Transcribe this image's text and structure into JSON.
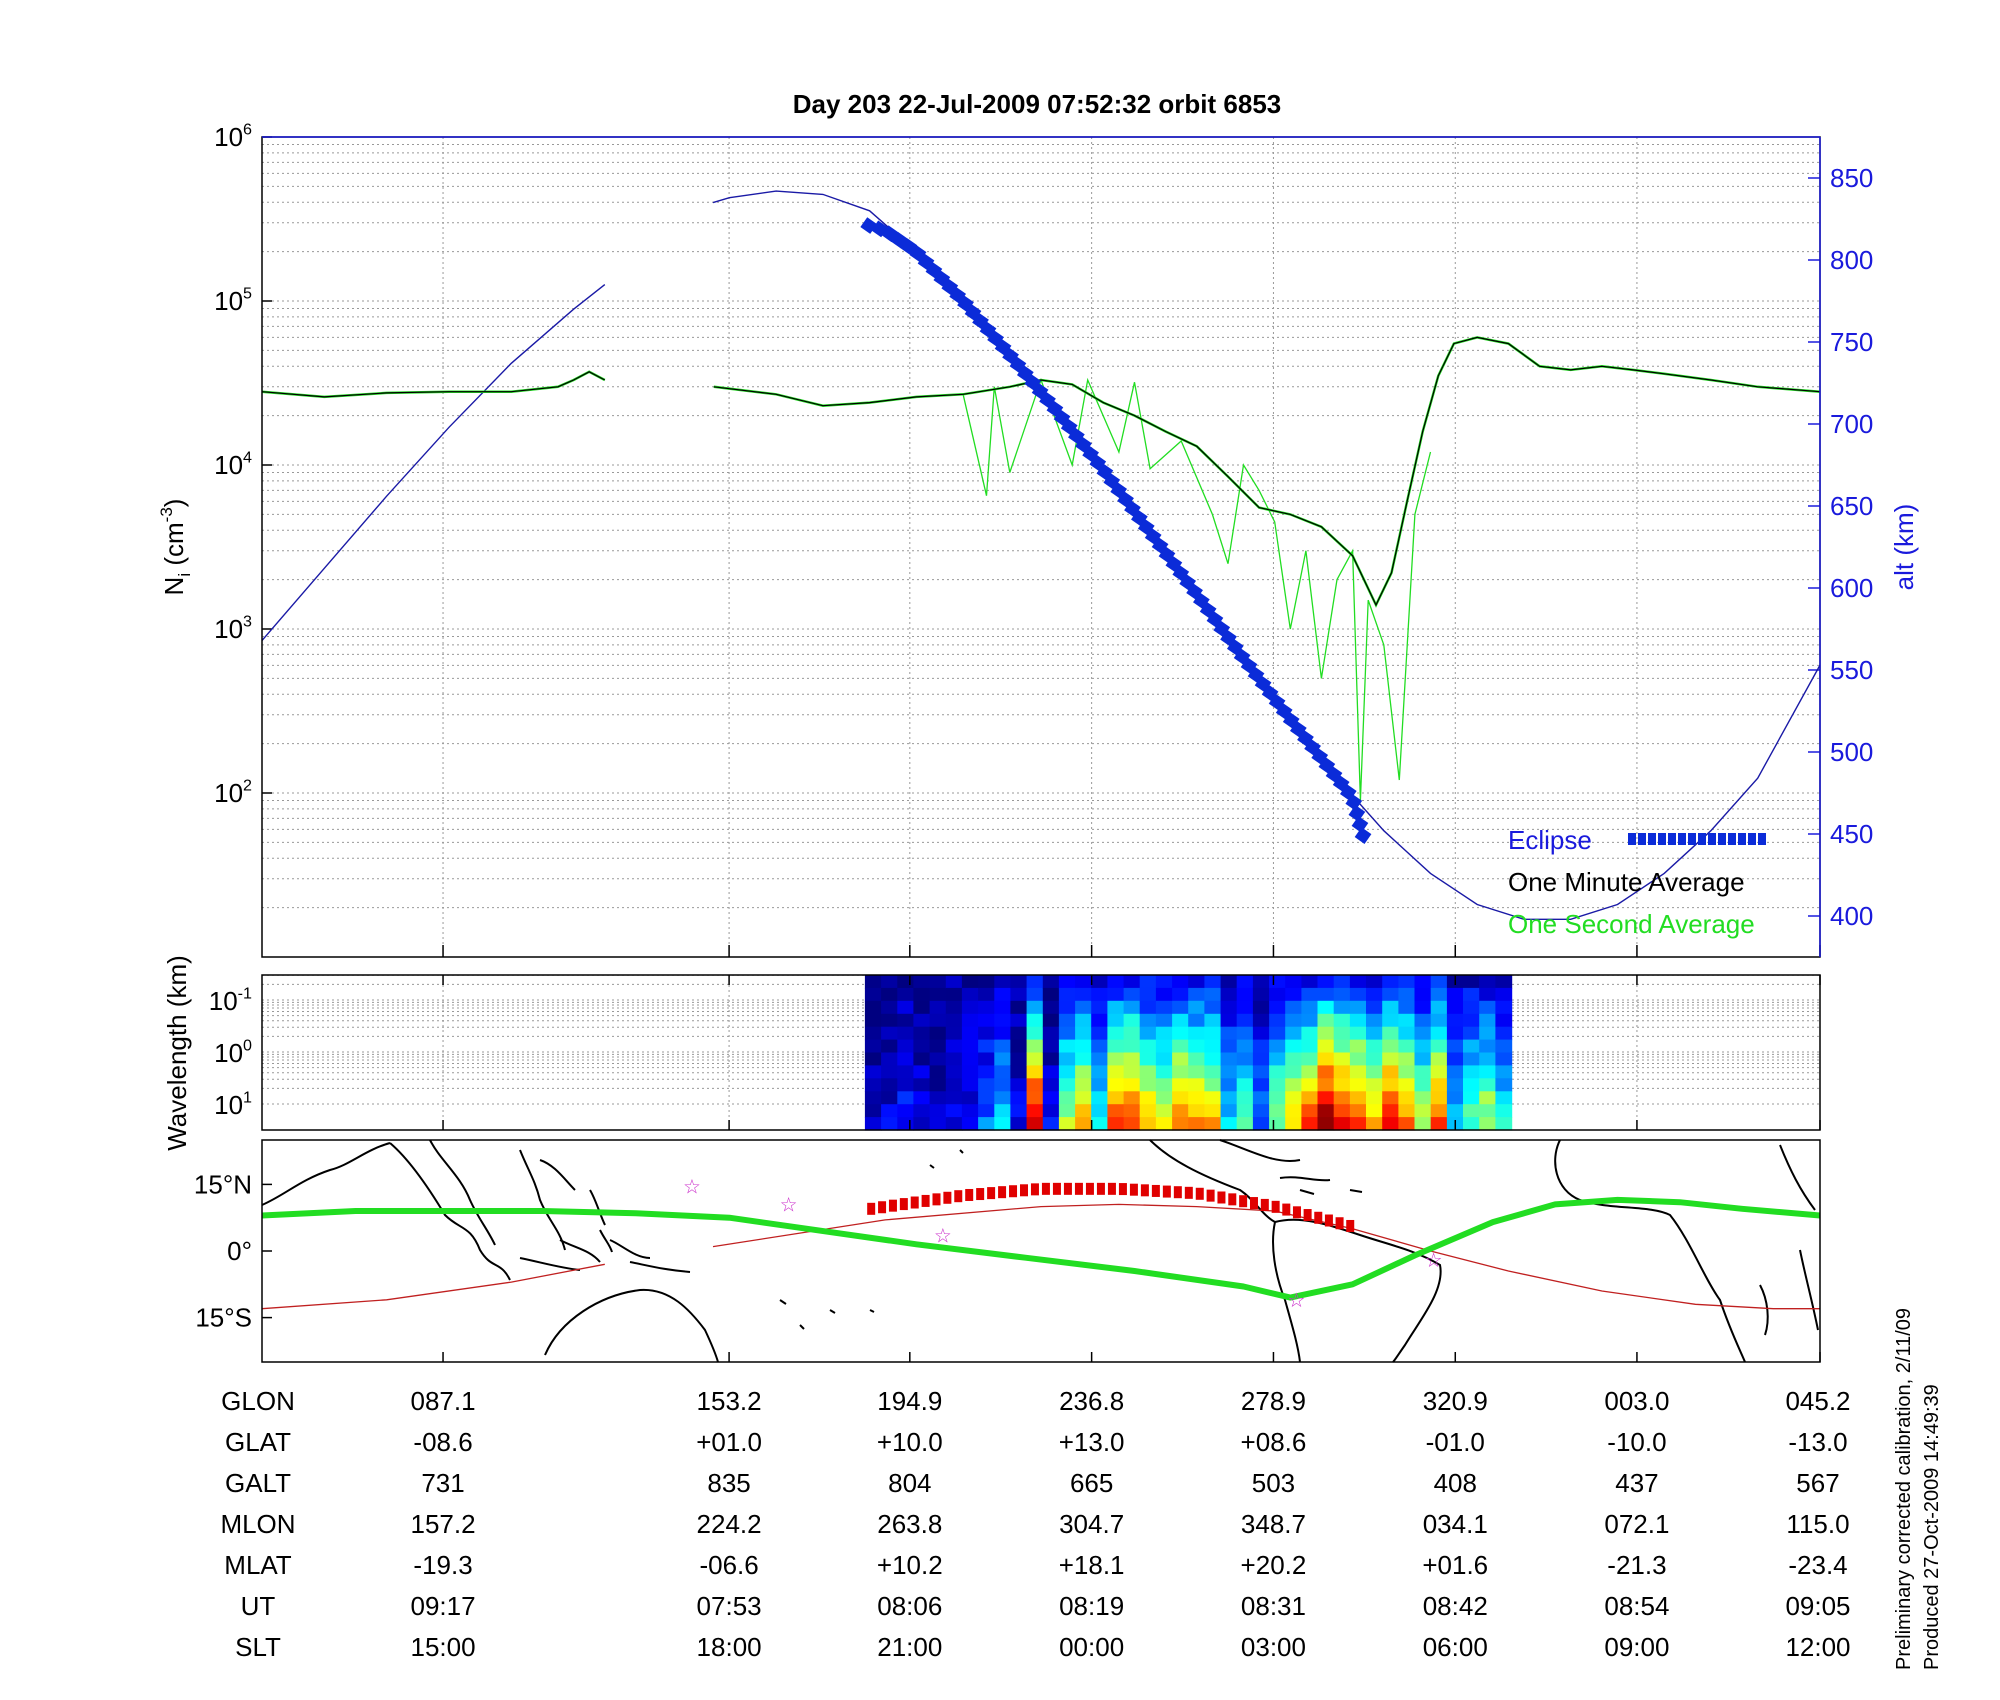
{
  "title": "Day 203  22-Jul-2009 07:52:32   orbit 6853",
  "colors": {
    "one_second": "#22dd22",
    "one_minute": "#000000",
    "altitude": "#1a1aa6",
    "eclipse": "#0b2bd8",
    "eclipse_map": "#e00000",
    "track": "#22dd22",
    "magnetic_equator": "#c02020",
    "stars": "#cc33cc",
    "right_axis": "#1a1adc"
  },
  "chart_data": [
    {
      "type": "line",
      "panel": "density",
      "ylabel": "N_i (cm^-3)",
      "yscale": "log",
      "ylim": [
        10,
        1000000
      ],
      "y_ticks": [
        "10^2",
        "10^3",
        "10^4",
        "10^5",
        "10^6"
      ],
      "y2label": "alt (km)",
      "y2lim": [
        375,
        875
      ],
      "y2_ticks": [
        "400",
        "450",
        "500",
        "550",
        "600",
        "650",
        "700",
        "750",
        "800",
        "850"
      ],
      "grid": true,
      "legend": {
        "position": "bottom-right",
        "entries": [
          "Eclipse",
          "One Minute Average",
          "One Second Average"
        ]
      },
      "x_tick_fraction": [
        0.1162,
        0.2998,
        0.4158,
        0.5325,
        0.6492,
        0.7659,
        0.8825,
        1.0
      ],
      "series": [
        {
          "name": "One Minute Average",
          "x": [
            0.0,
            0.04,
            0.08,
            0.12,
            0.16,
            0.19,
            0.2,
            0.21,
            0.22,
            0.29,
            0.33,
            0.36,
            0.39,
            0.42,
            0.45,
            0.48,
            0.5,
            0.52,
            0.54,
            0.56,
            0.58,
            0.6,
            0.62,
            0.64,
            0.66,
            0.68,
            0.7,
            0.715,
            0.725,
            0.735,
            0.745,
            0.755,
            0.765,
            0.78,
            0.8,
            0.82,
            0.84,
            0.86,
            0.88,
            0.9,
            0.93,
            0.96,
            1.0
          ],
          "y": [
            28000,
            26000,
            27500,
            28000,
            28000,
            30000,
            33000,
            37000,
            33000,
            30000,
            27000,
            23000,
            24000,
            26000,
            27000,
            30000,
            33000,
            31000,
            24000,
            20000,
            16000,
            13000,
            8500,
            5500,
            5000,
            4200,
            2800,
            1400,
            2200,
            6000,
            16000,
            35000,
            55000,
            60000,
            55000,
            40000,
            38000,
            40000,
            38000,
            36000,
            33000,
            30000,
            28000
          ]
        },
        {
          "name": "One Second Average",
          "x": [
            0.45,
            0.465,
            0.47,
            0.48,
            0.5,
            0.52,
            0.53,
            0.55,
            0.56,
            0.57,
            0.59,
            0.61,
            0.62,
            0.63,
            0.64,
            0.65,
            0.66,
            0.67,
            0.68,
            0.69,
            0.7,
            0.705,
            0.71,
            0.72,
            0.73,
            0.74,
            0.75
          ],
          "y": [
            27000,
            6500,
            30000,
            9000,
            33000,
            10000,
            33000,
            12000,
            32000,
            9500,
            14000,
            5000,
            2500,
            10000,
            7000,
            4500,
            1000,
            3000,
            500,
            2000,
            3000,
            90,
            1500,
            800,
            120,
            5000,
            12000
          ]
        },
        {
          "name": "alt (km)",
          "axis": "right",
          "x": [
            0.0,
            0.04,
            0.08,
            0.12,
            0.16,
            0.2,
            0.22,
            0.2895,
            0.3,
            0.33,
            0.36,
            0.39,
            0.42,
            0.45,
            0.48,
            0.51,
            0.54,
            0.57,
            0.6,
            0.63,
            0.66,
            0.69,
            0.72,
            0.75,
            0.78,
            0.81,
            0.84,
            0.87,
            0.9,
            0.93,
            0.96,
            1.0
          ],
          "y": [
            568,
            612,
            656,
            698,
            737,
            770,
            785,
            835,
            838,
            842,
            840,
            830,
            805,
            775,
            742,
            708,
            672,
            634,
            596,
            557,
            520,
            484,
            452,
            426,
            407,
            398,
            398,
            407,
            426,
            452,
            484,
            553
          ],
          "gap_x": [
            0.22,
            0.2895
          ]
        },
        {
          "name": "Eclipse",
          "axis": "right",
          "x": [
            0.3894,
            0.4,
            0.42,
            0.45,
            0.48,
            0.51,
            0.54,
            0.57,
            0.6,
            0.63,
            0.66,
            0.69,
            0.7,
            0.7067
          ],
          "y": [
            821,
            818,
            805,
            775,
            742,
            708,
            672,
            634,
            596,
            557,
            520,
            484,
            472,
            449
          ]
        }
      ]
    },
    {
      "type": "heatmap",
      "panel": "spectrogram",
      "ylabel": "Wavelength (km)",
      "yscale": "log",
      "y_ticks": [
        "10^-1",
        "10^0",
        "10^1"
      ],
      "x_range": [
        0.387,
        0.802
      ],
      "band_values": [
        0.05,
        0.08,
        0.12,
        0.08,
        0.07,
        0.1,
        0.12,
        0.2,
        0.3,
        0.1,
        0.85,
        0.1,
        0.5,
        0.6,
        0.3,
        0.7,
        0.75,
        0.6,
        0.55,
        0.7,
        0.65,
        0.6,
        0.3,
        0.4,
        0.2,
        0.45,
        0.6,
        0.7,
        0.9,
        0.8,
        0.75,
        0.6,
        0.8,
        0.7,
        0.5,
        0.7,
        0.3,
        0.4,
        0.5,
        0.35
      ]
    },
    {
      "type": "line",
      "panel": "map",
      "y_ticks": [
        "15°N",
        "0°",
        "15°S"
      ],
      "ylim": [
        -25,
        25
      ],
      "series": [
        {
          "name": "track",
          "x": [
            0.0,
            0.06,
            0.12,
            0.18,
            0.24,
            0.3,
            0.35,
            0.42,
            0.49,
            0.56,
            0.63,
            0.66,
            0.7,
            0.74,
            0.79,
            0.83,
            0.87,
            0.91,
            0.95,
            1.0
          ],
          "y": [
            8,
            9,
            9,
            9,
            8.5,
            7.5,
            5,
            1.5,
            -1.5,
            -4.5,
            -8,
            -10.5,
            -7.5,
            -1,
            6.5,
            10.5,
            11.5,
            11,
            9.5,
            8
          ]
        },
        {
          "name": "magnetic equator",
          "x": [
            0.0,
            0.08,
            0.16,
            0.22,
            0.2895,
            0.4,
            0.5,
            0.55,
            0.6,
            0.65,
            0.7,
            0.75,
            0.8,
            0.86,
            0.92,
            0.97,
            1.0
          ],
          "y": [
            -13,
            -11,
            -7,
            -3,
            1,
            7,
            10,
            10.5,
            10,
            9,
            5,
            0,
            -4.5,
            -9,
            -12,
            -13,
            -13
          ],
          "gap_x": [
            0.22,
            0.2895
          ]
        },
        {
          "name": "eclipse track",
          "x": [
            0.391,
            0.45,
            0.5,
            0.55,
            0.6,
            0.65,
            0.7
          ],
          "y": [
            9.5,
            12.5,
            14,
            14,
            13,
            10,
            5.5
          ]
        },
        {
          "name": "stars",
          "x": [
            0.276,
            0.338,
            0.437,
            0.664,
            0.752
          ],
          "y": [
            14.5,
            10.5,
            3.5,
            -11,
            -2
          ]
        }
      ]
    }
  ],
  "table": {
    "row_labels": [
      "GLON",
      "GLAT",
      "GALT",
      "MLON",
      "MLAT",
      "UT",
      "SLT"
    ],
    "rows": [
      [
        "087.1",
        "153.2",
        "194.9",
        "236.8",
        "278.9",
        "320.9",
        "003.0",
        "045.2"
      ],
      [
        "-08.6",
        "+01.0",
        "+10.0",
        "+13.0",
        "+08.6",
        "-01.0",
        "-10.0",
        "-13.0"
      ],
      [
        "731",
        "835",
        "804",
        "665",
        "503",
        "408",
        "437",
        "567"
      ],
      [
        "157.2",
        "224.2",
        "263.8",
        "304.7",
        "348.7",
        "034.1",
        "072.1",
        "115.0"
      ],
      [
        "-19.3",
        "-06.6",
        "+10.2",
        "+18.1",
        "+20.2",
        "+01.6",
        "-21.3",
        "-23.4"
      ],
      [
        "09:17",
        "07:53",
        "08:06",
        "08:19",
        "08:31",
        "08:42",
        "08:54",
        "09:05"
      ],
      [
        "15:00",
        "18:00",
        "21:00",
        "00:00",
        "03:00",
        "06:00",
        "09:00",
        "12:00"
      ]
    ]
  },
  "side_notes": [
    "Preliminary corrected calibration, 2/11/09",
    "Produced 27-Oct-2009 14:49:39"
  ]
}
